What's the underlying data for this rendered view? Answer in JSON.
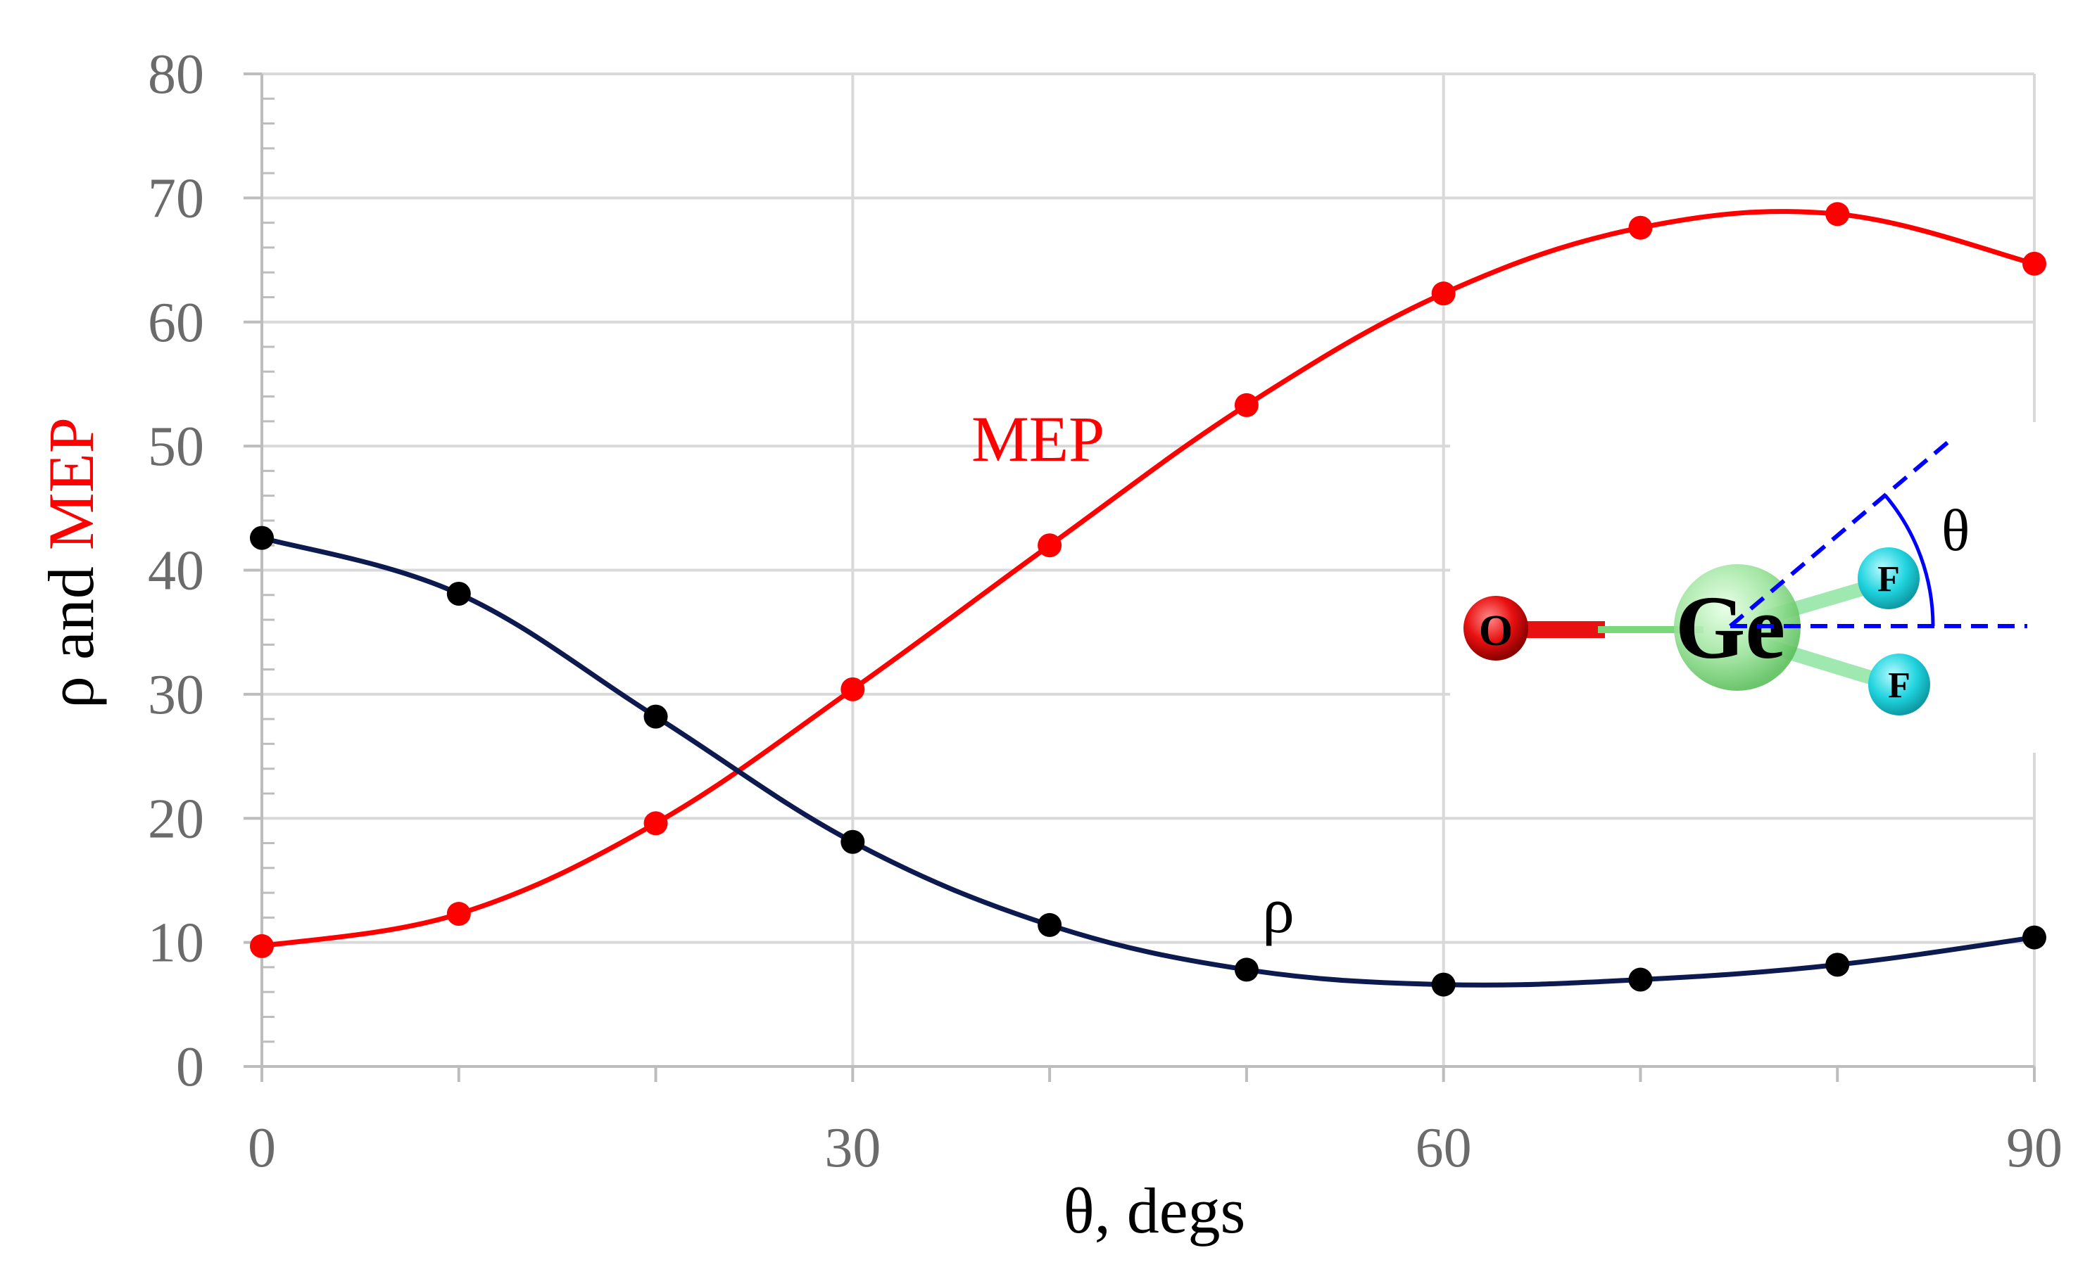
{
  "chart_data": {
    "type": "line",
    "x": [
      0,
      10,
      20,
      30,
      40,
      50,
      60,
      70,
      80,
      90
    ],
    "series": [
      {
        "name": "MEP",
        "color": "#ff0000",
        "values": [
          9.7,
          12.3,
          19.6,
          30.4,
          42.0,
          53.3,
          62.3,
          67.6,
          68.7,
          64.7
        ]
      },
      {
        "name": "ρ",
        "color": "#0d1a4f",
        "values": [
          42.6,
          38.1,
          28.2,
          18.1,
          11.4,
          7.8,
          6.6,
          7.0,
          8.2,
          10.4
        ]
      }
    ],
    "xlabel": "θ, degs",
    "ylabel_parts": [
      {
        "text": "ρ and ",
        "color": "#000000"
      },
      {
        "text": "MEP",
        "color": "#ff0000"
      }
    ],
    "xlim": [
      0,
      90
    ],
    "ylim": [
      0,
      80
    ],
    "x_ticks": [
      "0",
      "30",
      "60",
      "90"
    ],
    "y_ticks": [
      "0",
      "10",
      "20",
      "30",
      "40",
      "50",
      "60",
      "70",
      "80"
    ],
    "grid": true,
    "annotations": [
      {
        "text": "MEP",
        "color": "#ff0000"
      },
      {
        "text": "ρ",
        "color": "#000000"
      }
    ],
    "inset": {
      "atoms": [
        {
          "label": "O",
          "color": "#e81010"
        },
        {
          "label": "Ge",
          "color": "#8fdc8f"
        },
        {
          "label": "F",
          "color": "#1fd3de"
        },
        {
          "label": "F",
          "color": "#1fd3de"
        }
      ],
      "angle_label": "θ"
    }
  }
}
